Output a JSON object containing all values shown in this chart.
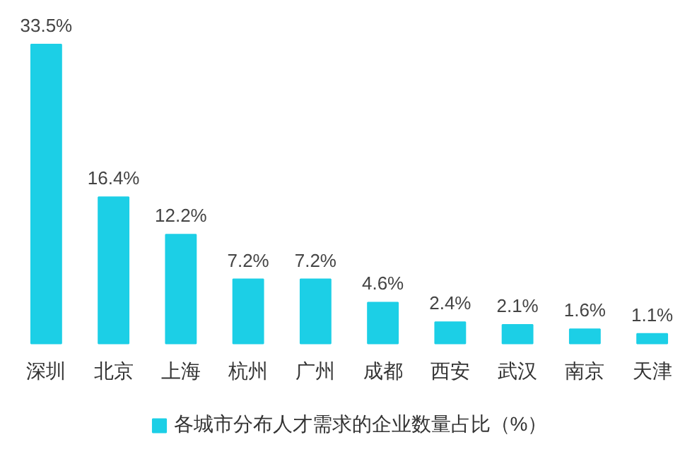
{
  "chart_data": {
    "type": "bar",
    "categories": [
      "深圳",
      "北京",
      "上海",
      "杭州",
      "广州",
      "成都",
      "西安",
      "武汉",
      "南京",
      "天津"
    ],
    "series": [
      {
        "name": "各城市分布人才需求的企业数量占比（%）",
        "color": "#1ccfe6",
        "values": [
          33.5,
          16.4,
          12.2,
          7.2,
          7.2,
          4.6,
          2.4,
          2.1,
          1.6,
          1.1
        ],
        "value_labels": [
          "33.5%",
          "16.4%",
          "12.2%",
          "7.2%",
          "7.2%",
          "4.6%",
          "2.4%",
          "2.1%",
          "1.6%",
          "1.1%"
        ]
      }
    ],
    "legend": "bottom"
  }
}
